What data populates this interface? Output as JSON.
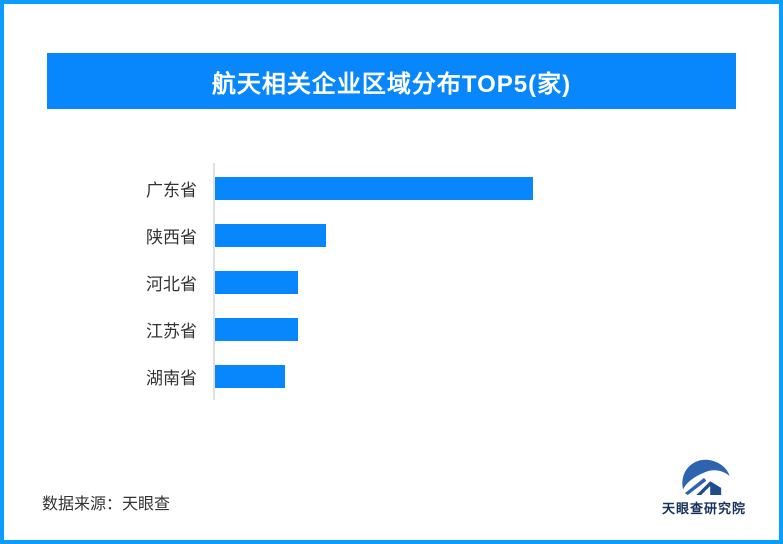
{
  "page": {
    "background": "#ffffff",
    "frame_border_color": "#0a9dfb"
  },
  "header": {
    "title": "航天相关企业区域分布TOP5(家)",
    "banner_color": "#0787fb",
    "title_color": "#ffffff"
  },
  "chart_data": {
    "type": "bar",
    "orientation": "horizontal",
    "title": "航天相关企业区域分布TOP5(家)",
    "categories": [
      "广东省",
      "陕西省",
      "河北省",
      "江苏省",
      "湖南省"
    ],
    "values_relative_to_max_pct": [
      100,
      35,
      26,
      26,
      22
    ],
    "value_labels_shown": false,
    "axis_tick_labels_shown": false,
    "grid": false,
    "legend": "none",
    "bar_color": "#0787fb",
    "label_color": "#333333",
    "axis_line_color": "#e0e0e0"
  },
  "footer": {
    "source_text": "数据来源：天眼查"
  },
  "brand": {
    "name": "天眼查研究院",
    "logo_icon": "tianyancha-eye-house-logo",
    "logo_color": "#2e63ae",
    "logo_dark_color": "#1d4c8f",
    "text_color": "#17335c"
  }
}
